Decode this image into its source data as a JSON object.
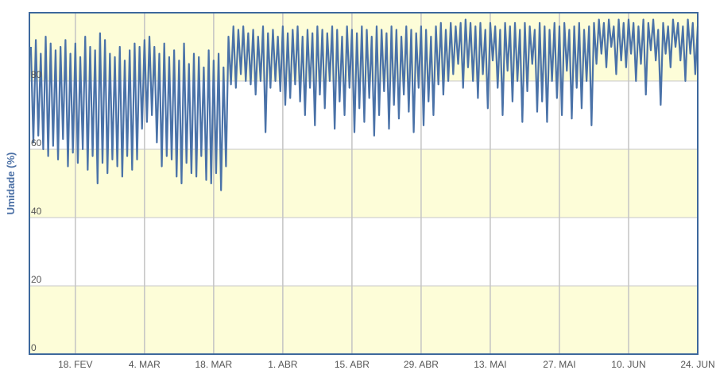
{
  "chart_data": {
    "type": "line",
    "y_label": "Umidade (%)",
    "xlim": [
      39.7,
      175
    ],
    "xticks": [
      {
        "value": 49,
        "label": "18. FEV"
      },
      {
        "value": 63,
        "label": "4. MAR"
      },
      {
        "value": 77,
        "label": "18. MAR"
      },
      {
        "value": 91,
        "label": "1. ABR"
      },
      {
        "value": 105,
        "label": "15. ABR"
      },
      {
        "value": 119,
        "label": "29. ABR"
      },
      {
        "value": 133,
        "label": "13. MAI"
      },
      {
        "value": 147,
        "label": "27. MAI"
      },
      {
        "value": 161,
        "label": "10. JUN"
      },
      {
        "value": 175,
        "label": "24. JUN"
      }
    ],
    "ylim": [
      0,
      100
    ],
    "yticks": [
      0,
      20,
      40,
      60,
      80
    ],
    "grid": true,
    "series": [
      {
        "color": "#4a72a8",
        "x": [
          40,
          40.5,
          41,
          41.5,
          42,
          42.5,
          43,
          43.5,
          44,
          44.5,
          45,
          45.5,
          46,
          46.5,
          47,
          47.5,
          48,
          48.5,
          49,
          49.5,
          50,
          50.5,
          51,
          51.5,
          52,
          52.5,
          53,
          53.5,
          54,
          54.5,
          55,
          55.5,
          56,
          56.5,
          57,
          57.5,
          58,
          58.5,
          59,
          59.5,
          60,
          60.5,
          61,
          61.5,
          62,
          62.5,
          63,
          63.5,
          64,
          64.5,
          65,
          65.5,
          66,
          66.5,
          67,
          67.5,
          68,
          68.5,
          69,
          69.5,
          70,
          70.5,
          71,
          71.5,
          72,
          72.5,
          73,
          73.5,
          74,
          74.5,
          75,
          75.5,
          76,
          76.5,
          77,
          77.5,
          78,
          78.5,
          79,
          79.5,
          80,
          80.5,
          81,
          81.5,
          82,
          82.5,
          83,
          83.5,
          84,
          84.5,
          85,
          85.5,
          86,
          86.5,
          87,
          87.5,
          88,
          88.5,
          89,
          89.5,
          90,
          90.5,
          91,
          91.5,
          92,
          92.5,
          93,
          93.5,
          94,
          94.5,
          95,
          95.5,
          96,
          96.5,
          97,
          97.5,
          98,
          98.5,
          99,
          99.5,
          100,
          100.5,
          101,
          101.5,
          102,
          102.5,
          103,
          103.5,
          104,
          104.5,
          105,
          105.5,
          106,
          106.5,
          107,
          107.5,
          108,
          108.5,
          109,
          109.5,
          110,
          110.5,
          111,
          111.5,
          112,
          112.5,
          113,
          113.5,
          114,
          114.5,
          115,
          115.5,
          116,
          116.5,
          117,
          117.5,
          118,
          118.5,
          119,
          119.5,
          120,
          120.5,
          121,
          121.5,
          122,
          122.5,
          123,
          123.5,
          124,
          124.5,
          125,
          125.5,
          126,
          126.5,
          127,
          127.5,
          128,
          128.5,
          129,
          129.5,
          130,
          130.5,
          131,
          131.5,
          132,
          132.5,
          133,
          133.5,
          134,
          134.5,
          135,
          135.5,
          136,
          136.5,
          137,
          137.5,
          138,
          138.5,
          139,
          139.5,
          140,
          140.5,
          141,
          141.5,
          142,
          142.5,
          143,
          143.5,
          144,
          144.5,
          145,
          145.5,
          146,
          146.5,
          147,
          147.5,
          148,
          148.5,
          149,
          149.5,
          150,
          150.5,
          151,
          151.5,
          152,
          152.5,
          153,
          153.5,
          154,
          154.5,
          155,
          155.5,
          156,
          156.5,
          157,
          157.5,
          158,
          158.5,
          159,
          159.5,
          160,
          160.5,
          161,
          161.5,
          162,
          162.5,
          163,
          163.5,
          164,
          164.5,
          165,
          165.5,
          166,
          166.5,
          167,
          167.5,
          168,
          168.5,
          169,
          169.5,
          170,
          170.5,
          171,
          171.5,
          172,
          172.5,
          173,
          173.5,
          174,
          174.5,
          175
        ],
        "values": [
          90,
          62,
          92,
          64,
          88,
          60,
          93,
          58,
          91,
          61,
          89,
          57,
          90,
          63,
          92,
          55,
          88,
          59,
          91,
          56,
          87,
          60,
          93,
          54,
          90,
          58,
          89,
          50,
          94,
          56,
          92,
          53,
          88,
          57,
          87,
          55,
          90,
          52,
          86,
          58,
          89,
          54,
          91,
          57,
          90,
          66,
          92,
          68,
          93,
          70,
          90,
          62,
          88,
          55,
          91,
          58,
          87,
          57,
          89,
          52,
          86,
          50,
          91,
          56,
          85,
          53,
          88,
          52,
          87,
          58,
          84,
          51,
          89,
          50,
          86,
          53,
          88,
          48,
          84,
          55,
          93,
          79,
          96,
          78,
          95,
          82,
          96,
          80,
          94,
          79,
          95,
          76,
          93,
          80,
          96,
          65,
          94,
          78,
          95,
          80,
          93,
          77,
          96,
          73,
          94,
          75,
          95,
          79,
          96,
          74,
          93,
          70,
          95,
          78,
          94,
          67,
          96,
          76,
          95,
          72,
          94,
          80,
          96,
          66,
          95,
          74,
          93,
          70,
          96,
          78,
          95,
          65,
          94,
          72,
          96,
          68,
          95,
          75,
          93,
          64,
          96,
          70,
          95,
          77,
          94,
          66,
          96,
          73,
          95,
          69,
          93,
          76,
          96,
          71,
          95,
          65,
          94,
          78,
          96,
          67,
          95,
          74,
          93,
          70,
          96,
          79,
          97,
          76,
          95,
          80,
          97,
          82,
          96,
          85,
          97,
          78,
          98,
          84,
          97,
          80,
          96,
          75,
          97,
          82,
          95,
          72,
          97,
          86,
          96,
          78,
          95,
          70,
          97,
          83,
          96,
          74,
          97,
          80,
          95,
          68,
          97,
          77,
          96,
          85,
          95,
          71,
          97,
          74,
          96,
          68,
          95,
          80,
          97,
          75,
          96,
          70,
          97,
          83,
          95,
          69,
          96,
          78,
          97,
          72,
          95,
          80,
          96,
          67,
          97,
          85,
          98,
          88,
          97,
          84,
          98,
          90,
          96,
          82,
          98,
          86,
          97,
          84,
          98,
          88,
          97,
          80,
          96,
          85,
          98,
          76,
          97,
          89,
          98,
          86,
          95,
          73,
          97,
          88,
          96,
          84,
          98,
          90,
          97,
          86,
          96,
          80,
          98,
          88,
          97,
          82,
          96
        ]
      }
    ]
  }
}
